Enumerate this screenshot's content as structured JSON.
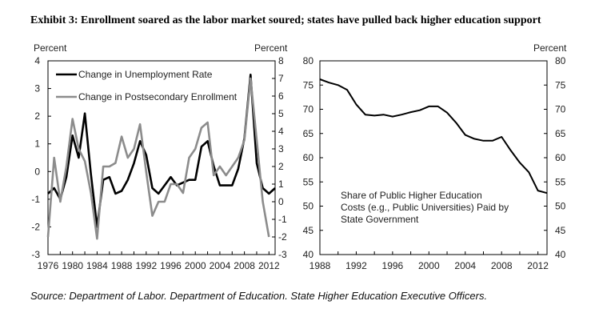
{
  "exhibit_title": "Exhibit 3: Enrollment soared as the labor market soured; states have pulled back higher education support",
  "source": "Source: Department of Labor. Department of Education. State Higher Education Executive Officers.",
  "chart_data": [
    {
      "type": "line",
      "left_axis_label": "Percent",
      "right_axis_label": "Percent",
      "left_ylim": [
        -3,
        4
      ],
      "right_ylim": [
        -3,
        8
      ],
      "left_ticks": [
        "-3",
        "-2",
        "-1",
        "0",
        "1",
        "2",
        "3",
        "4"
      ],
      "right_ticks": [
        "-3",
        "-2",
        "-1",
        "0",
        "1",
        "2",
        "3",
        "4",
        "5",
        "6",
        "7",
        "8"
      ],
      "xlim": [
        1976,
        2013
      ],
      "x_ticks": [
        "1976",
        "1980",
        "1984",
        "1988",
        "1992",
        "1996",
        "2000",
        "2004",
        "2008",
        "2012"
      ],
      "grid": false,
      "legend_position": "top-left",
      "series": [
        {
          "name": "Change in Unemployment Rate",
          "axis": "left",
          "color": "#000000",
          "x": [
            1976,
            1977,
            1978,
            1979,
            1980,
            1981,
            1982,
            1983,
            1984,
            1985,
            1986,
            1987,
            1988,
            1989,
            1990,
            1991,
            1992,
            1993,
            1994,
            1995,
            1996,
            1997,
            1998,
            1999,
            2000,
            2001,
            2002,
            2003,
            2004,
            2005,
            2006,
            2007,
            2008,
            2009,
            2010,
            2011,
            2012,
            2013
          ],
          "y": [
            -0.8,
            -0.6,
            -1.0,
            -0.2,
            1.3,
            0.5,
            2.1,
            -0.1,
            -2.0,
            -0.3,
            -0.2,
            -0.8,
            -0.7,
            -0.3,
            0.3,
            1.1,
            0.6,
            -0.6,
            -0.8,
            -0.5,
            -0.2,
            -0.5,
            -0.4,
            -0.3,
            -0.3,
            0.9,
            1.1,
            0.2,
            -0.5,
            -0.5,
            -0.5,
            0.1,
            1.2,
            3.5,
            0.3,
            -0.6,
            -0.8,
            -0.6
          ]
        },
        {
          "name": "Change in Postsecondary Enrollment",
          "axis": "right",
          "color": "#8c8c8c",
          "x": [
            1976,
            1977,
            1978,
            1979,
            1980,
            1981,
            1982,
            1983,
            1984,
            1985,
            1986,
            1987,
            1988,
            1989,
            1990,
            1991,
            1992,
            1993,
            1994,
            1995,
            1996,
            1997,
            1998,
            1999,
            2000,
            2001,
            2002,
            2003,
            2004,
            2005,
            2006,
            2007,
            2008,
            2009,
            2010,
            2011,
            2012
          ],
          "y": [
            -2.0,
            2.5,
            0.0,
            2.0,
            4.7,
            3.0,
            2.3,
            0.5,
            -2.1,
            2.0,
            2.0,
            2.2,
            3.7,
            2.5,
            3.0,
            4.4,
            1.7,
            -0.8,
            0.0,
            0.0,
            1.0,
            1.0,
            0.5,
            2.5,
            3.0,
            4.2,
            4.5,
            1.5,
            2.0,
            1.5,
            2.0,
            2.5,
            3.5,
            7.0,
            3.5,
            0.0,
            -2.0
          ]
        }
      ]
    },
    {
      "type": "line",
      "left_axis_label": "",
      "right_axis_label": "Percent",
      "ylim": [
        40,
        80
      ],
      "y_ticks": [
        "40",
        "45",
        "50",
        "55",
        "60",
        "65",
        "70",
        "75",
        "80"
      ],
      "xlim": [
        1988,
        2013
      ],
      "x_ticks": [
        "1988",
        "1992",
        "1996",
        "2000",
        "2004",
        "2008",
        "2012"
      ],
      "grid": false,
      "annotation": "Share of Public  Higher Education Costs (e.g., Public Universities) Paid by State Government",
      "annotation_lines": [
        "Share of Public  Higher Education",
        "Costs (e.g., Public Universities) Paid by",
        "State Government"
      ],
      "series": [
        {
          "color": "#000000",
          "x": [
            1988,
            1989,
            1990,
            1991,
            1992,
            1993,
            1994,
            1995,
            1996,
            1997,
            1998,
            1999,
            2000,
            2001,
            2002,
            2003,
            2004,
            2005,
            2006,
            2007,
            2008,
            2009,
            2010,
            2011,
            2012,
            2013
          ],
          "y": [
            76.2,
            75.5,
            75.0,
            74.0,
            71.0,
            68.9,
            68.7,
            68.9,
            68.5,
            68.9,
            69.4,
            69.8,
            70.6,
            70.6,
            69.3,
            67.2,
            64.7,
            63.9,
            63.5,
            63.5,
            64.3,
            61.5,
            59.0,
            57.0,
            53.2,
            52.7
          ]
        }
      ]
    }
  ]
}
